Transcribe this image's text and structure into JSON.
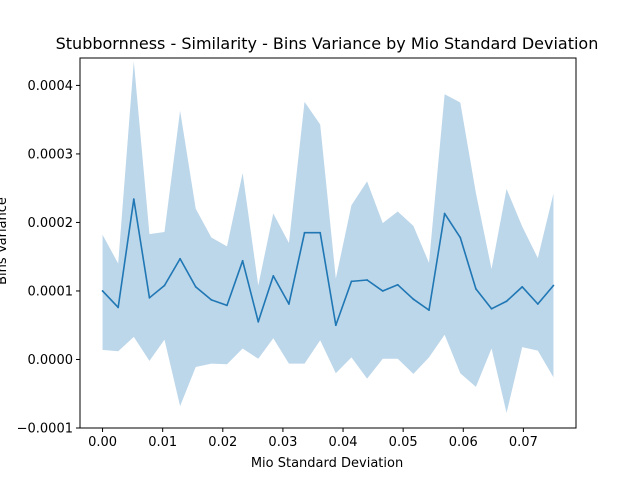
{
  "chart_data": {
    "type": "area",
    "title": "Stubbornness - Similarity - Bins Variance by Mio Standard Deviation",
    "xlabel": "Mio Standard Deviation",
    "ylabel": "Bins Variance",
    "xlim": [
      -0.00375,
      0.07875
    ],
    "ylim": [
      -0.0001,
      0.00044
    ],
    "xticks": [
      0.0,
      0.01,
      0.02,
      0.03,
      0.04,
      0.05,
      0.06,
      0.07
    ],
    "xtick_labels": [
      "0.00",
      "0.01",
      "0.02",
      "0.03",
      "0.04",
      "0.05",
      "0.06",
      "0.07"
    ],
    "yticks": [
      -0.0001,
      0.0,
      0.0001,
      0.0002,
      0.0003,
      0.0004
    ],
    "ytick_labels": [
      "−0.0001",
      "0.0000",
      "0.0001",
      "0.0002",
      "0.0003",
      "0.0004"
    ],
    "grid": false,
    "colors": {
      "line": "#1f77b4",
      "band": "#bcd6ea"
    },
    "x": [
      0.0,
      0.0026,
      0.0052,
      0.0078,
      0.0103,
      0.0129,
      0.0155,
      0.0181,
      0.0207,
      0.0233,
      0.0259,
      0.0284,
      0.031,
      0.0336,
      0.0362,
      0.0388,
      0.0414,
      0.044,
      0.0466,
      0.0491,
      0.0517,
      0.0543,
      0.0569,
      0.0595,
      0.0621,
      0.0647,
      0.0672,
      0.0698,
      0.0724,
      0.075
    ],
    "series": [
      {
        "values": [
          0.0001,
          7.6e-05,
          0.000234,
          9e-05,
          0.000108,
          0.000147,
          0.000106,
          8.7e-05,
          7.9e-05,
          0.000144,
          5.5e-05,
          0.000122,
          8.1e-05,
          0.000185,
          0.000185,
          5e-05,
          0.000114,
          0.000116,
          0.0001,
          0.000109,
          8.8e-05,
          7.2e-05,
          0.000213,
          0.000178,
          0.000103,
          7.4e-05,
          8.5e-05,
          0.000106,
          8.1e-05,
          0.000108
        ],
        "upper": [
          0.000182,
          0.00014,
          0.000435,
          0.000183,
          0.000186,
          0.000363,
          0.00022,
          0.000178,
          0.000165,
          0.000272,
          0.000108,
          0.000213,
          0.00017,
          0.000376,
          0.000343,
          0.000118,
          0.000225,
          0.00026,
          0.000199,
          0.000216,
          0.000195,
          0.000141,
          0.000387,
          0.000375,
          0.000243,
          0.000132,
          0.000249,
          0.000194,
          0.000148,
          0.000242
        ],
        "lower": [
          1.4e-05,
          1.2e-05,
          3.3e-05,
          -2e-06,
          2.9e-05,
          -6.8e-05,
          -1.1e-05,
          -6e-06,
          -7e-06,
          1.6e-05,
          1e-06,
          3.1e-05,
          -6e-06,
          -6e-06,
          2.8e-05,
          -2e-05,
          3e-06,
          -2.8e-05,
          1e-06,
          1e-06,
          -2.1e-05,
          3e-06,
          3.6e-05,
          -2e-05,
          -4e-05,
          1.6e-05,
          -7.8e-05,
          1.8e-05,
          1.3e-05,
          -2.6e-05
        ]
      }
    ]
  }
}
